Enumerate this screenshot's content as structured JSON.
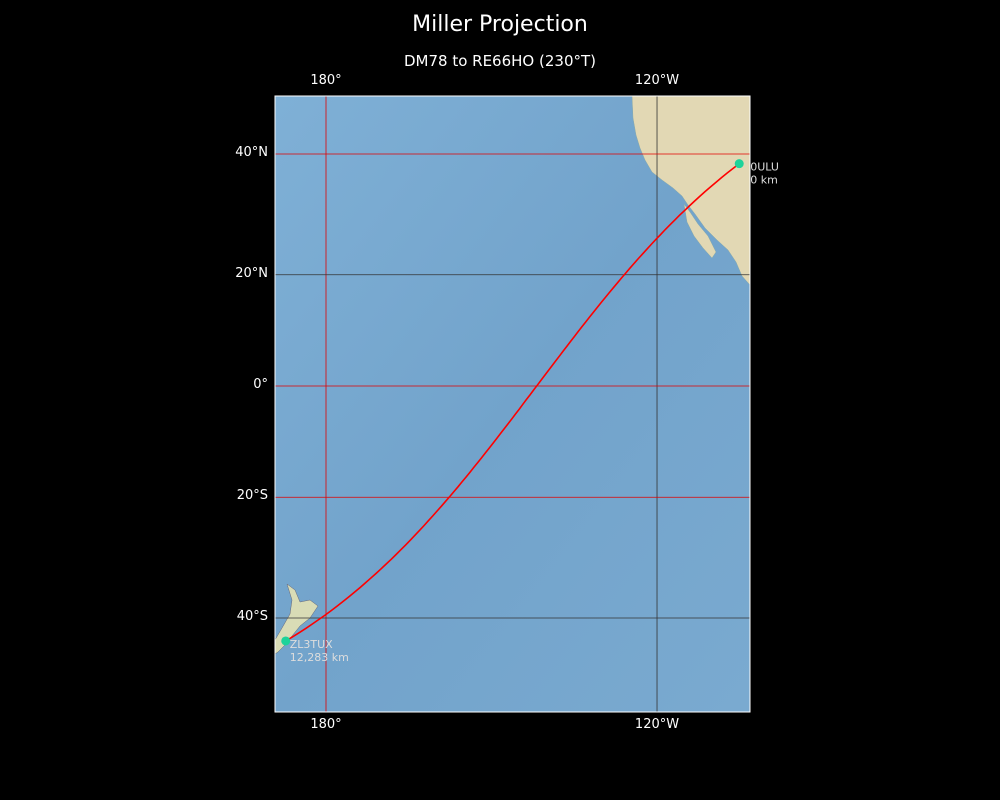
{
  "title": "Miller Projection",
  "subtitle": "DM78 to RE66HO (230°T)",
  "map": {
    "projection": "Miller",
    "extent": {
      "lon_min": 170.8,
      "lon_max": -103.1,
      "lat_min": -53.5,
      "lat_max": 48.6
    },
    "lon_ticks": [
      {
        "lon": 180,
        "label": "180°",
        "color": "#e00000"
      },
      {
        "lon": -120,
        "label": "120°W",
        "color": "#333333"
      }
    ],
    "lat_ticks": [
      {
        "lat": 40,
        "label": "40°N",
        "color": "#e00000"
      },
      {
        "lat": 20,
        "label": "20°N",
        "color": "#333333"
      },
      {
        "lat": 0,
        "label": "0°",
        "color": "#e00000"
      },
      {
        "lat": -20,
        "label": "20°S",
        "color": "#e00000"
      },
      {
        "lat": -40,
        "label": "40°S",
        "color": "#333333"
      }
    ],
    "ocean_color": "#7aa9cf",
    "land_color": "#e4dcb8",
    "route_color": "#ff0000",
    "marker_color": "#1ed39a",
    "points": [
      {
        "lon": -105.1,
        "lat": 38.5,
        "label": "0ULU",
        "sublabel": "0 km"
      },
      {
        "lon": 172.7,
        "lat": -43.5,
        "label": "ZL3TUX",
        "sublabel": "12,283 km"
      }
    ]
  }
}
